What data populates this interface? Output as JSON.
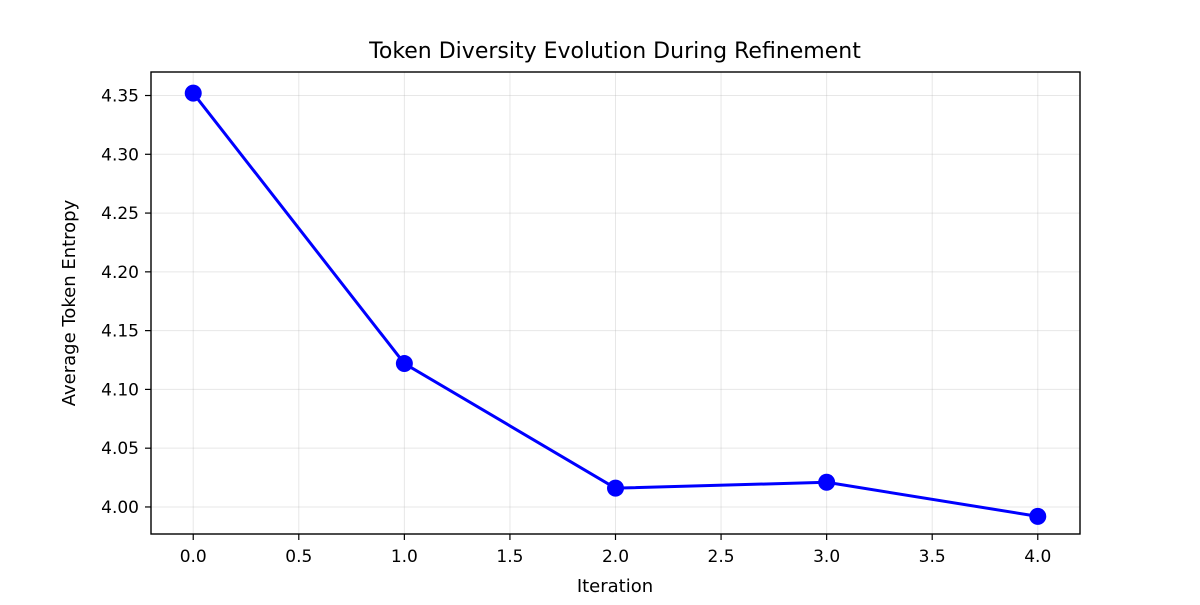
{
  "chart_data": {
    "type": "line",
    "title": "Token Diversity Evolution During Refinement",
    "xlabel": "Iteration",
    "ylabel": "Average Token Entropy",
    "xlim": [
      -0.2,
      4.2
    ],
    "ylim": [
      3.977,
      4.37
    ],
    "x_ticks": [
      0.0,
      0.5,
      1.0,
      1.5,
      2.0,
      2.5,
      3.0,
      3.5,
      4.0
    ],
    "x_tick_labels": [
      "0.0",
      "0.5",
      "1.0",
      "1.5",
      "2.0",
      "2.5",
      "3.0",
      "3.5",
      "4.0"
    ],
    "y_ticks": [
      4.0,
      4.05,
      4.1,
      4.15,
      4.2,
      4.25,
      4.3,
      4.35
    ],
    "y_tick_labels": [
      "4.00",
      "4.05",
      "4.10",
      "4.15",
      "4.20",
      "4.25",
      "4.30",
      "4.35"
    ],
    "grid": true,
    "series": [
      {
        "x": [
          0,
          1,
          2,
          3,
          4
        ],
        "values": [
          4.352,
          4.122,
          4.016,
          4.021,
          3.992
        ],
        "color": "#0000ff",
        "marker": "circle"
      }
    ]
  }
}
